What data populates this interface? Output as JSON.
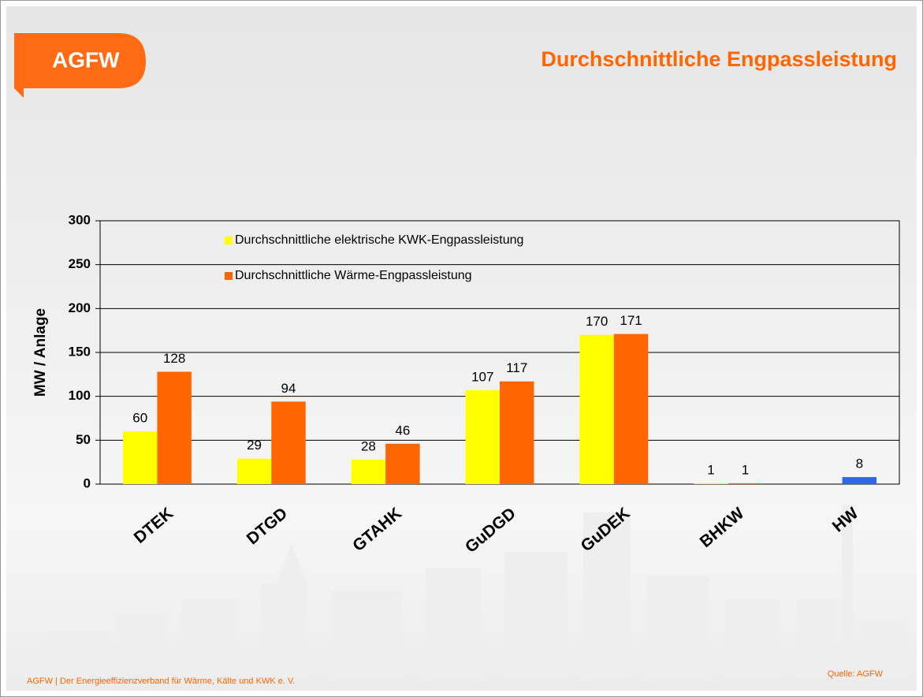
{
  "logo_text": "AGFW",
  "footer": "AGFW | Der Energieeffizienzverband für Wärme, Kälte und KWK e. V.",
  "source": "Quelle: AGFW",
  "chart_data": {
    "type": "bar",
    "title": "Durchschnittliche Engpassleistung",
    "y_label": "MW / Anlage",
    "categories": [
      "DTEK",
      "DTGD",
      "GTAHK",
      "GuDGD",
      "GuDEK",
      "BHKW",
      "HW"
    ],
    "series": [
      {
        "name": "Durchschnittliche elektrische KWK-Engpassleistung",
        "color": "#ffff00",
        "values": [
          60,
          29,
          28,
          107,
          170,
          1,
          null
        ]
      },
      {
        "name": "Durchschnittliche Wärme-Engpassleistung",
        "color": "#ff6600",
        "colors": [
          "#ff6600",
          "#ff6600",
          "#ff6600",
          "#ff6600",
          "#ff6600",
          "#ff6600",
          "#3366e6"
        ],
        "values": [
          128,
          94,
          46,
          117,
          171,
          1,
          8
        ]
      }
    ],
    "ylim": [
      0,
      300
    ],
    "yticks": [
      0,
      50,
      100,
      150,
      200,
      250,
      300
    ],
    "grid": true,
    "legend": "top-left"
  }
}
